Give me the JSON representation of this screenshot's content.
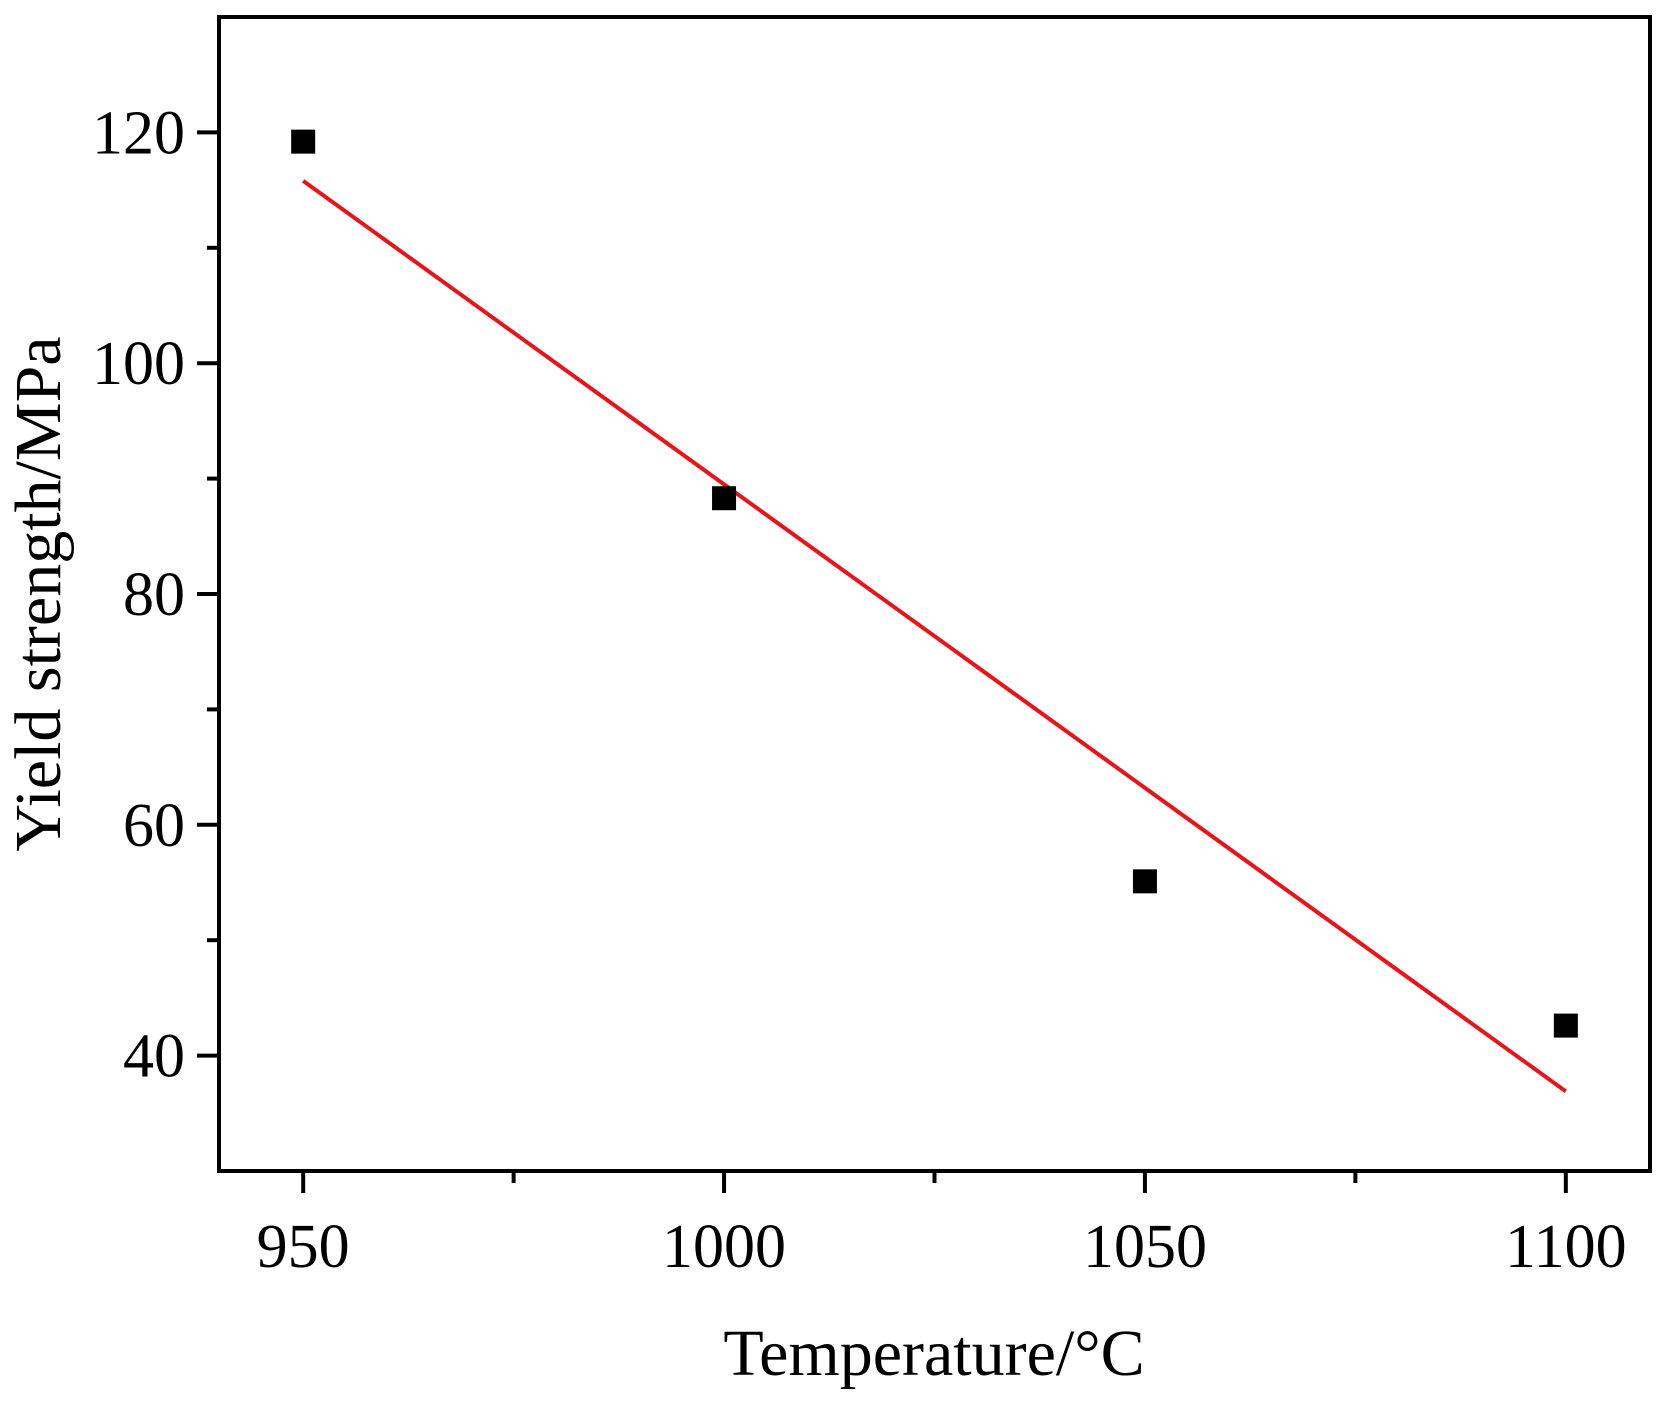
{
  "chart_data": {
    "type": "scatter",
    "title": "",
    "xlabel": "Temperature/°C",
    "ylabel": "Yield strength/MPa",
    "xlim": [
      940,
      1110
    ],
    "ylim": [
      30,
      130
    ],
    "x_ticks": [
      950,
      1000,
      1050,
      1100
    ],
    "x_tick_labels": [
      "950",
      "1000",
      "1050",
      "1100"
    ],
    "x_minor_ticks": [
      975,
      1025,
      1075
    ],
    "y_ticks": [
      40,
      60,
      80,
      100,
      120
    ],
    "y_tick_labels": [
      "40",
      "60",
      "80",
      "100",
      "120"
    ],
    "y_minor_ticks": [
      50,
      70,
      90,
      110
    ],
    "grid": false,
    "legend": "none",
    "series": [
      {
        "kind": "points",
        "marker": "square",
        "color": "#000000",
        "x": [
          950,
          1000,
          1050,
          1100
        ],
        "y": [
          119.2,
          88.3,
          55.1,
          42.6
        ]
      },
      {
        "kind": "fit_line",
        "color": "#e8141c",
        "x": [
          950,
          1100
        ],
        "y": [
          115.8,
          36.9
        ]
      }
    ]
  }
}
